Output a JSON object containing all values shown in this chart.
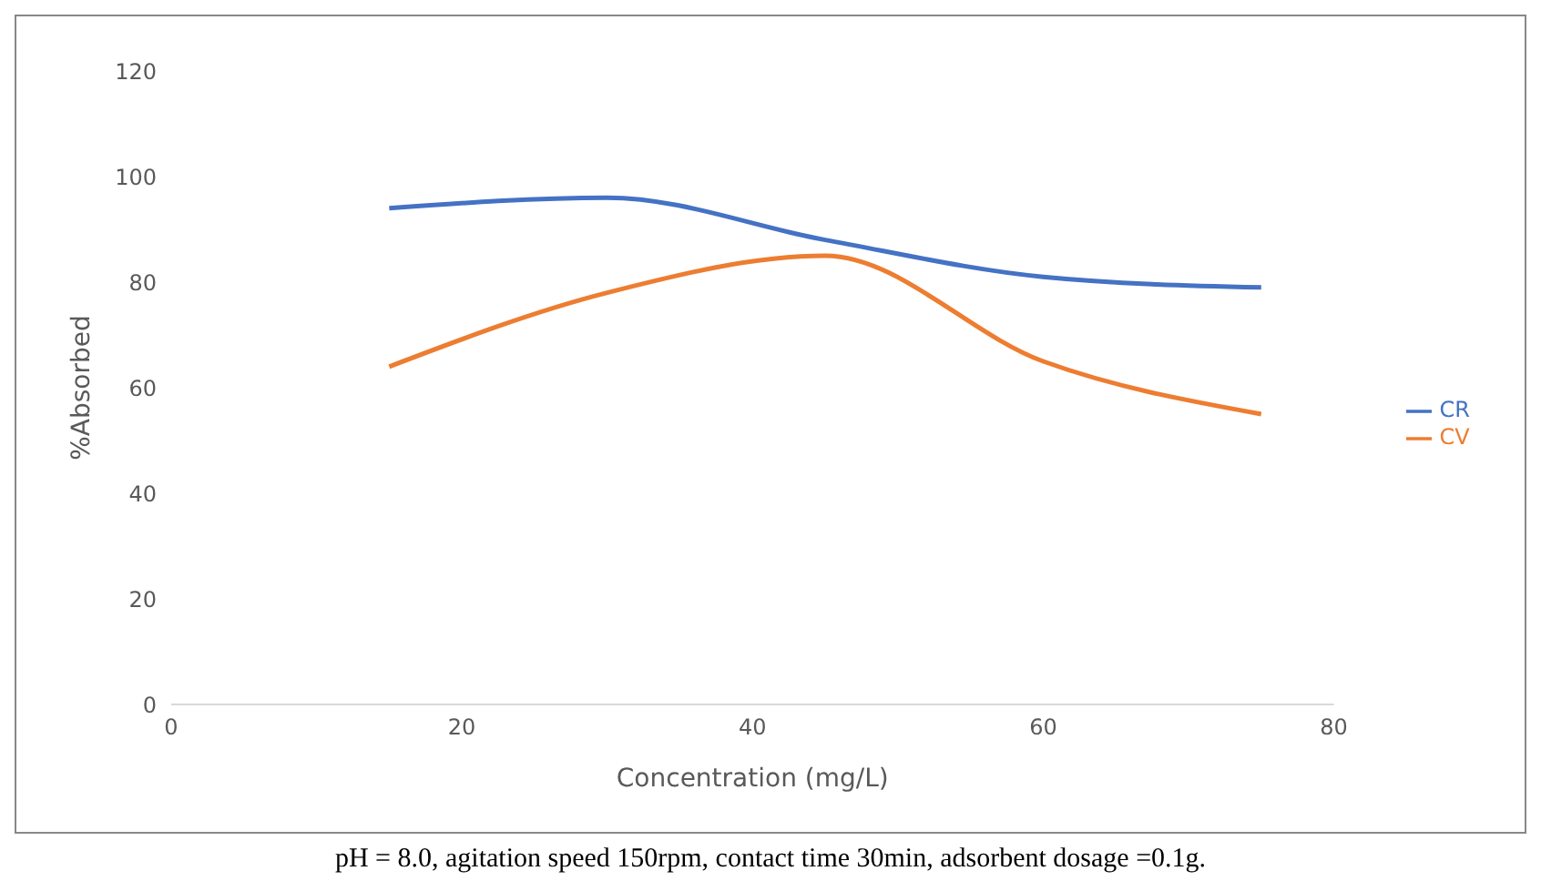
{
  "chart_data": {
    "type": "line",
    "xlabel": "Concentration (mg/L)",
    "ylabel": "%Absorbed",
    "x": [
      15,
      30,
      45,
      60,
      75
    ],
    "series": [
      {
        "name": "CR",
        "color": "#4472c4",
        "values": [
          94,
          96,
          88,
          81,
          79
        ]
      },
      {
        "name": "CV",
        "color": "#ed7d31",
        "values": [
          64,
          78,
          85,
          65,
          55
        ]
      }
    ],
    "xlim": [
      0,
      80
    ],
    "xticks": [
      0,
      20,
      40,
      60,
      80
    ],
    "ylim": [
      0,
      120
    ],
    "yticks": [
      0,
      20,
      40,
      60,
      80,
      100,
      120
    ],
    "grid": false,
    "legend": "right",
    "marker": "none",
    "line_style": "solid",
    "annotations": [
      "pH = 8.0, agitation speed 150rpm, contact time 30min, adsorbent dosage =0.1g."
    ]
  }
}
